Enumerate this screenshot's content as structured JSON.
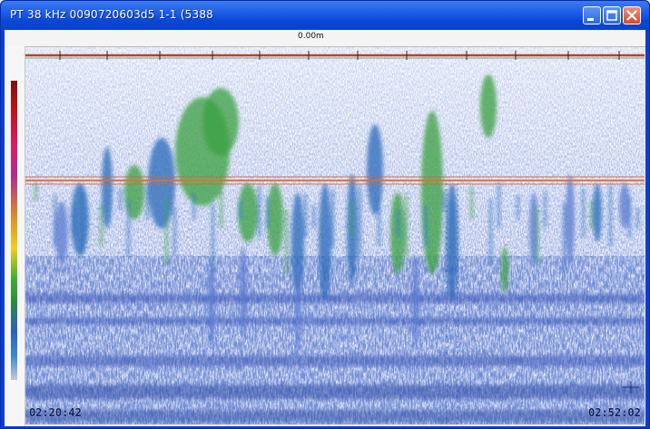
{
  "window": {
    "title": "PT  38 kHz 0090720603d5 1-1 (5388",
    "buttons": [
      "minimize-icon",
      "maximize-icon",
      "close-icon"
    ]
  },
  "ruler": {
    "depth_label": "0.00m"
  },
  "echogram": {
    "start_time": "02:20:42",
    "end_time": "02:52:02",
    "colors": {
      "surface_line": "#b83a1a",
      "bottom_line": "#d45a3a",
      "strong_echo": "#3aa040",
      "medium_echo": "#2a6ab8",
      "weak_echo": "#5a7ad0"
    }
  }
}
